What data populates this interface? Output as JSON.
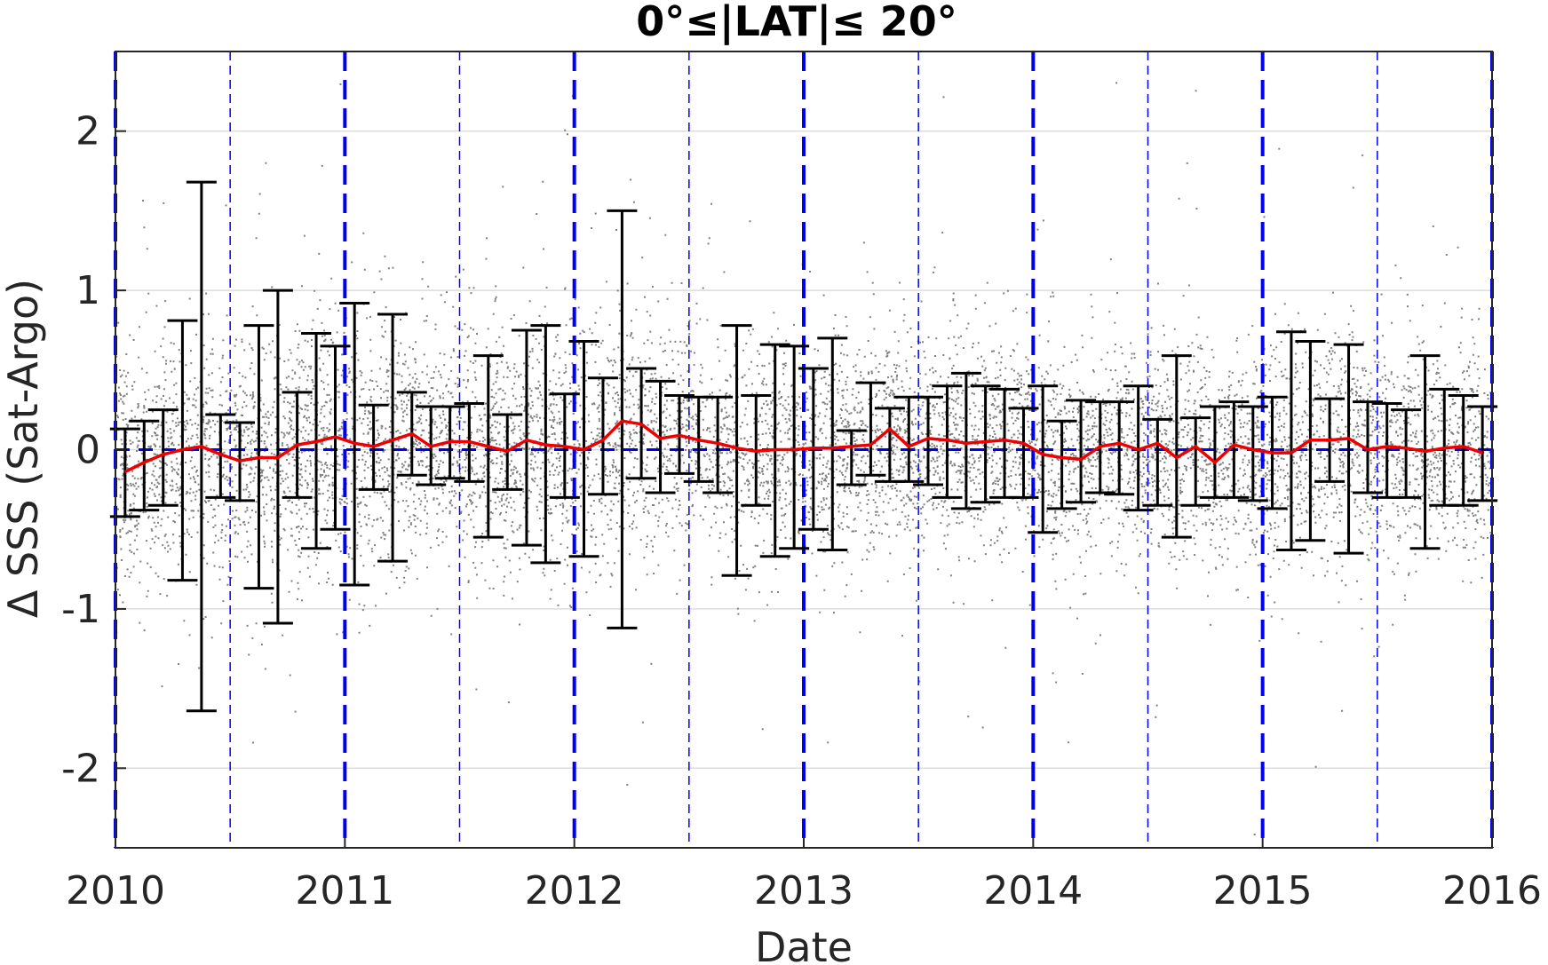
{
  "chart_data": {
    "type": "scatter",
    "title": "0°≤|LAT|≤ 20°",
    "xlabel": "Date",
    "ylabel": "Δ SSS (Sat-Argo)",
    "xlim": [
      2010,
      2016
    ],
    "ylim": [
      -2.5,
      2.5
    ],
    "x_ticks": [
      2010,
      2011,
      2012,
      2013,
      2014,
      2015,
      2016
    ],
    "x_tick_labels": [
      "2010",
      "2011",
      "2012",
      "2013",
      "2014",
      "2015",
      "2016"
    ],
    "y_ticks": [
      -2,
      -1,
      0,
      1,
      2
    ],
    "y_tick_labels": [
      "-2",
      "-1",
      "0",
      "1",
      "2"
    ],
    "grid": "horizontal",
    "vertical_lines": {
      "yearly": [
        2010,
        2011,
        2012,
        2013,
        2014,
        2015,
        2016
      ],
      "half_year": [
        2010.5,
        2011.5,
        2012.5,
        2013.5,
        2014.5,
        2015.5
      ],
      "color": "#0000ee"
    },
    "zero_line": {
      "y": 0,
      "color": "#0000ee"
    },
    "colors": {
      "scatter": "#808080",
      "error_bars": "#000000",
      "mean_line": "#ee0000",
      "reference_lines": "#0000ee"
    },
    "monthly_mean": {
      "x": [
        2010.042,
        2010.125,
        2010.208,
        2010.292,
        2010.375,
        2010.458,
        2010.542,
        2010.625,
        2010.708,
        2010.792,
        2010.875,
        2010.958,
        2011.042,
        2011.125,
        2011.208,
        2011.292,
        2011.375,
        2011.458,
        2011.542,
        2011.625,
        2011.708,
        2011.792,
        2011.875,
        2011.958,
        2012.042,
        2012.125,
        2012.208,
        2012.292,
        2012.375,
        2012.458,
        2012.542,
        2012.625,
        2012.708,
        2012.792,
        2012.875,
        2012.958,
        2013.042,
        2013.125,
        2013.208,
        2013.292,
        2013.375,
        2013.458,
        2013.542,
        2013.625,
        2013.708,
        2013.792,
        2013.875,
        2013.958,
        2014.042,
        2014.125,
        2014.208,
        2014.292,
        2014.375,
        2014.458,
        2014.542,
        2014.625,
        2014.708,
        2014.792,
        2014.875,
        2014.958,
        2015.042,
        2015.125,
        2015.208,
        2015.292,
        2015.375,
        2015.458,
        2015.542,
        2015.625,
        2015.708,
        2015.792,
        2015.875,
        2015.958
      ],
      "y": [
        -0.14,
        -0.08,
        -0.03,
        0.0,
        0.02,
        -0.03,
        -0.07,
        -0.05,
        -0.05,
        0.03,
        0.05,
        0.08,
        0.04,
        0.02,
        0.06,
        0.1,
        0.02,
        0.05,
        0.05,
        0.02,
        -0.01,
        0.06,
        0.03,
        0.02,
        0.0,
        0.06,
        0.18,
        0.16,
        0.07,
        0.09,
        0.06,
        0.04,
        0.01,
        -0.01,
        0.0,
        0.0,
        0.01,
        0.01,
        0.02,
        0.03,
        0.13,
        0.02,
        0.07,
        0.06,
        0.04,
        0.05,
        0.06,
        0.04,
        -0.03,
        -0.05,
        -0.06,
        0.02,
        0.04,
        0.0,
        0.04,
        -0.05,
        0.02,
        -0.08,
        0.03,
        0.0,
        -0.02,
        -0.02,
        0.06,
        0.06,
        0.07,
        0.0,
        0.02,
        0.01,
        -0.01,
        0.01,
        0.02,
        -0.02
      ]
    },
    "error_bars": {
      "x": [
        2010.042,
        2010.125,
        2010.208,
        2010.292,
        2010.375,
        2010.458,
        2010.542,
        2010.625,
        2010.708,
        2010.792,
        2010.875,
        2010.958,
        2011.042,
        2011.125,
        2011.208,
        2011.292,
        2011.375,
        2011.458,
        2011.542,
        2011.625,
        2011.708,
        2011.792,
        2011.875,
        2011.958,
        2012.042,
        2012.125,
        2012.208,
        2012.292,
        2012.375,
        2012.458,
        2012.542,
        2012.625,
        2012.708,
        2012.792,
        2012.875,
        2012.958,
        2013.042,
        2013.125,
        2013.208,
        2013.292,
        2013.375,
        2013.458,
        2013.542,
        2013.625,
        2013.708,
        2013.792,
        2013.875,
        2013.958,
        2014.042,
        2014.125,
        2014.208,
        2014.292,
        2014.375,
        2014.458,
        2014.542,
        2014.625,
        2014.708,
        2014.792,
        2014.875,
        2014.958,
        2015.042,
        2015.125,
        2015.208,
        2015.292,
        2015.375,
        2015.458,
        2015.542,
        2015.625,
        2015.708,
        2015.792,
        2015.875,
        2015.958
      ],
      "upper": [
        0.13,
        0.18,
        0.25,
        0.81,
        1.68,
        0.22,
        0.17,
        0.78,
        1.0,
        0.36,
        0.73,
        0.65,
        0.92,
        0.28,
        0.85,
        0.36,
        0.27,
        0.27,
        0.29,
        0.59,
        0.22,
        0.75,
        0.78,
        0.35,
        0.68,
        0.45,
        1.5,
        0.51,
        0.43,
        0.34,
        0.33,
        0.33,
        0.78,
        0.34,
        0.66,
        0.65,
        0.51,
        0.7,
        0.12,
        0.42,
        0.26,
        0.33,
        0.33,
        0.4,
        0.48,
        0.4,
        0.38,
        0.26,
        0.4,
        0.18,
        0.31,
        0.3,
        0.3,
        0.4,
        0.19,
        0.59,
        0.2,
        0.27,
        0.3,
        0.27,
        0.33,
        0.74,
        0.68,
        0.32,
        0.66,
        0.3,
        0.29,
        0.25,
        0.59,
        0.38,
        0.34,
        0.27
      ],
      "lower": [
        -0.42,
        -0.38,
        -0.35,
        -0.82,
        -1.64,
        -0.3,
        -0.32,
        -0.87,
        -1.09,
        -0.3,
        -0.62,
        -0.5,
        -0.85,
        -0.25,
        -0.7,
        -0.16,
        -0.22,
        -0.18,
        -0.2,
        -0.55,
        -0.25,
        -0.6,
        -0.71,
        -0.3,
        -0.67,
        -0.28,
        -1.12,
        -0.18,
        -0.27,
        -0.15,
        -0.2,
        -0.27,
        -0.79,
        -0.35,
        -0.67,
        -0.62,
        -0.5,
        -0.63,
        -0.22,
        -0.16,
        -0.2,
        -0.2,
        -0.22,
        -0.3,
        -0.37,
        -0.33,
        -0.3,
        -0.3,
        -0.52,
        -0.37,
        -0.33,
        -0.27,
        -0.28,
        -0.38,
        -0.35,
        -0.55,
        -0.35,
        -0.3,
        -0.3,
        -0.32,
        -0.37,
        -0.63,
        -0.57,
        -0.2,
        -0.65,
        -0.27,
        -0.3,
        -0.3,
        -0.62,
        -0.35,
        -0.35,
        -0.32
      ]
    },
    "scatter": {
      "description_free": true,
      "spread_by_month": [
        0.35,
        0.38,
        0.36,
        0.4,
        0.42,
        0.4,
        0.4,
        0.42,
        0.42,
        0.42,
        0.42,
        0.42,
        0.42,
        0.4,
        0.4,
        0.4,
        0.38,
        0.38,
        0.38,
        0.38,
        0.38,
        0.4,
        0.4,
        0.4,
        0.4,
        0.4,
        0.4,
        0.38,
        0.36,
        0.35,
        0.33,
        0.33,
        0.33,
        0.33,
        0.33,
        0.33,
        0.33,
        0.35,
        0.35,
        0.33,
        0.33,
        0.33,
        0.33,
        0.33,
        0.33,
        0.33,
        0.33,
        0.33,
        0.33,
        0.33,
        0.33,
        0.33,
        0.33,
        0.33,
        0.33,
        0.33,
        0.33,
        0.33,
        0.33,
        0.33,
        0.35,
        0.35,
        0.35,
        0.35,
        0.35,
        0.33,
        0.33,
        0.33,
        0.33,
        0.33,
        0.33,
        0.33
      ]
    }
  }
}
